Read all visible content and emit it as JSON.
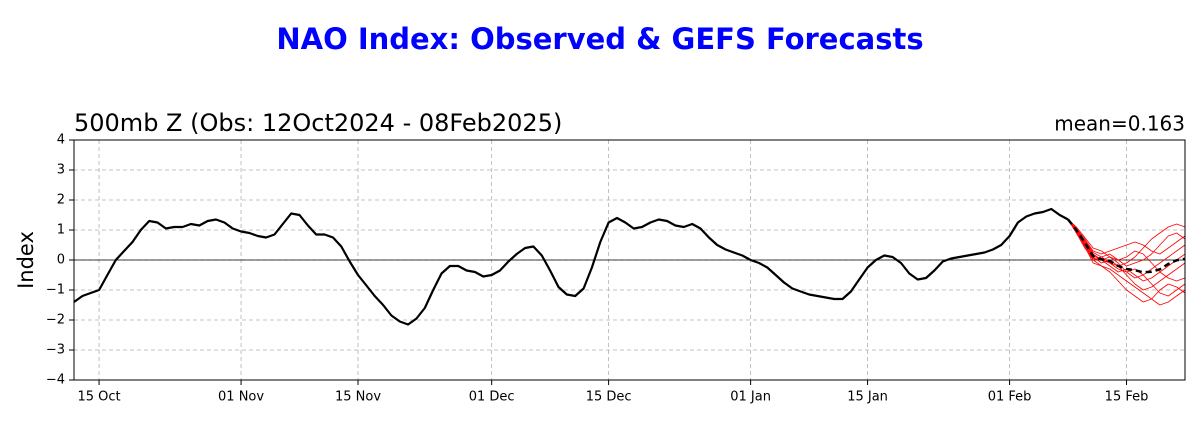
{
  "chart_data": {
    "type": "line",
    "title": "NAO Index: Observed & GEFS Forecasts",
    "subtitle": "500mb Z (Obs: 12Oct2024 - 08Feb2025)",
    "annotation": "mean=0.163",
    "y_label": "Index",
    "xlim": [
      "2024-10-12",
      "2025-02-22"
    ],
    "xticks": [
      {
        "value": "2024-10-15",
        "label": "15 Oct"
      },
      {
        "value": "2024-11-01",
        "label": "01 Nov"
      },
      {
        "value": "2024-11-15",
        "label": "15 Nov"
      },
      {
        "value": "2024-12-01",
        "label": "01 Dec"
      },
      {
        "value": "2024-12-15",
        "label": "15 Dec"
      },
      {
        "value": "2025-01-01",
        "label": "01 Jan"
      },
      {
        "value": "2025-01-15",
        "label": "15 Jan"
      },
      {
        "value": "2025-02-01",
        "label": "01 Feb"
      },
      {
        "value": "2025-02-15",
        "label": "15 Feb"
      }
    ],
    "ylim": [
      -4,
      4
    ],
    "yticks": [
      {
        "value": -4,
        "label": "−4"
      },
      {
        "value": -3,
        "label": "−3"
      },
      {
        "value": -2,
        "label": "−2"
      },
      {
        "value": -1,
        "label": "−1"
      },
      0,
      1,
      2,
      3,
      4
    ],
    "grid": true,
    "series": [
      {
        "color": "#ff0000",
        "linestyle": "solid",
        "x": [
          "2025-02-08",
          "2025-02-09",
          "2025-02-10",
          "2025-02-11",
          "2025-02-12",
          "2025-02-13",
          "2025-02-14",
          "2025-02-15",
          "2025-02-16",
          "2025-02-17",
          "2025-02-18",
          "2025-02-19",
          "2025-02-20",
          "2025-02-21",
          "2025-02-22"
        ],
        "values": [
          1.35,
          1.0,
          0.6,
          0.2,
          0.0,
          -0.1,
          -0.2,
          -0.1,
          0.1,
          0.4,
          0.7,
          0.9,
          1.1,
          1.2,
          1.1
        ]
      },
      {
        "color": "#ff0000",
        "linestyle": "solid",
        "x": [
          "2025-02-08",
          "2025-02-09",
          "2025-02-10",
          "2025-02-11",
          "2025-02-12",
          "2025-02-13",
          "2025-02-14",
          "2025-02-15",
          "2025-02-16",
          "2025-02-17",
          "2025-02-18",
          "2025-02-19",
          "2025-02-20",
          "2025-02-21",
          "2025-02-22"
        ],
        "values": [
          1.35,
          0.95,
          0.5,
          0.0,
          -0.2,
          -0.3,
          -0.5,
          -0.7,
          -0.9,
          -1.1,
          -1.3,
          -1.5,
          -1.4,
          -1.2,
          -1.0
        ]
      },
      {
        "color": "#ff0000",
        "linestyle": "solid",
        "x": [
          "2025-02-08",
          "2025-02-09",
          "2025-02-10",
          "2025-02-11",
          "2025-02-12",
          "2025-02-13",
          "2025-02-14",
          "2025-02-15",
          "2025-02-16",
          "2025-02-17",
          "2025-02-18",
          "2025-02-19",
          "2025-02-20",
          "2025-02-21",
          "2025-02-22"
        ],
        "values": [
          1.35,
          1.05,
          0.7,
          0.3,
          0.2,
          0.3,
          0.4,
          0.5,
          0.6,
          0.5,
          0.3,
          0.2,
          0.4,
          0.6,
          0.8
        ]
      },
      {
        "color": "#ff0000",
        "linestyle": "solid",
        "x": [
          "2025-02-08",
          "2025-02-09",
          "2025-02-10",
          "2025-02-11",
          "2025-02-12",
          "2025-02-13",
          "2025-02-14",
          "2025-02-15",
          "2025-02-16",
          "2025-02-17",
          "2025-02-18",
          "2025-02-19",
          "2025-02-20",
          "2025-02-21",
          "2025-02-22"
        ],
        "values": [
          1.35,
          0.9,
          0.4,
          0.0,
          0.1,
          -0.1,
          -0.3,
          -0.4,
          -0.6,
          -0.5,
          -0.3,
          -0.1,
          0.1,
          0.3,
          0.5
        ]
      },
      {
        "color": "#ff0000",
        "linestyle": "solid",
        "x": [
          "2025-02-08",
          "2025-02-09",
          "2025-02-10",
          "2025-02-11",
          "2025-02-12",
          "2025-02-13",
          "2025-02-14",
          "2025-02-15",
          "2025-02-16",
          "2025-02-17",
          "2025-02-18",
          "2025-02-19",
          "2025-02-20",
          "2025-02-21",
          "2025-02-22"
        ],
        "values": [
          1.35,
          1.0,
          0.55,
          0.1,
          -0.1,
          0.0,
          -0.2,
          -0.5,
          -0.8,
          -1.0,
          -0.9,
          -0.7,
          -0.5,
          -0.3,
          -0.1
        ]
      },
      {
        "color": "#ff0000",
        "linestyle": "solid",
        "x": [
          "2025-02-08",
          "2025-02-09",
          "2025-02-10",
          "2025-02-11",
          "2025-02-12",
          "2025-02-13",
          "2025-02-14",
          "2025-02-15",
          "2025-02-16",
          "2025-02-17",
          "2025-02-18",
          "2025-02-19",
          "2025-02-20",
          "2025-02-21",
          "2025-02-22"
        ],
        "values": [
          1.35,
          1.1,
          0.75,
          0.4,
          0.3,
          0.1,
          0.0,
          0.1,
          0.3,
          0.2,
          -0.1,
          -0.4,
          -0.6,
          -0.7,
          -0.6
        ]
      },
      {
        "color": "#ff0000",
        "linestyle": "solid",
        "x": [
          "2025-02-08",
          "2025-02-09",
          "2025-02-10",
          "2025-02-11",
          "2025-02-12",
          "2025-02-13",
          "2025-02-14",
          "2025-02-15",
          "2025-02-16",
          "2025-02-17",
          "2025-02-18",
          "2025-02-19",
          "2025-02-20",
          "2025-02-21",
          "2025-02-22"
        ],
        "values": [
          1.35,
          0.95,
          0.45,
          -0.1,
          -0.2,
          -0.4,
          -0.7,
          -1.0,
          -1.2,
          -1.4,
          -1.3,
          -1.0,
          -0.8,
          -0.9,
          -1.1
        ]
      },
      {
        "color": "#ff0000",
        "linestyle": "solid",
        "x": [
          "2025-02-08",
          "2025-02-09",
          "2025-02-10",
          "2025-02-11",
          "2025-02-12",
          "2025-02-13",
          "2025-02-14",
          "2025-02-15",
          "2025-02-16",
          "2025-02-17",
          "2025-02-18",
          "2025-02-19",
          "2025-02-20",
          "2025-02-21",
          "2025-02-22"
        ],
        "values": [
          1.35,
          1.0,
          0.65,
          0.25,
          0.1,
          0.2,
          0.0,
          -0.2,
          -0.1,
          0.0,
          0.2,
          0.5,
          0.8,
          0.9,
          0.7
        ]
      },
      {
        "color": "#ff0000",
        "linestyle": "solid",
        "x": [
          "2025-02-08",
          "2025-02-09",
          "2025-02-10",
          "2025-02-11",
          "2025-02-12",
          "2025-02-13",
          "2025-02-14",
          "2025-02-15",
          "2025-02-16",
          "2025-02-17",
          "2025-02-18",
          "2025-02-19",
          "2025-02-20",
          "2025-02-21",
          "2025-02-22"
        ],
        "values": [
          1.35,
          1.05,
          0.6,
          0.15,
          0.0,
          -0.2,
          -0.4,
          -0.3,
          -0.5,
          -0.7,
          -0.6,
          -0.4,
          -0.2,
          0.0,
          0.2
        ]
      },
      {
        "color": "#ff0000",
        "linestyle": "solid",
        "x": [
          "2025-02-08",
          "2025-02-09",
          "2025-02-10",
          "2025-02-11",
          "2025-02-12",
          "2025-02-13",
          "2025-02-14",
          "2025-02-15",
          "2025-02-16",
          "2025-02-17",
          "2025-02-18",
          "2025-02-19",
          "2025-02-20",
          "2025-02-21",
          "2025-02-22"
        ],
        "values": [
          1.35,
          0.9,
          0.5,
          0.05,
          0.0,
          0.1,
          -0.1,
          -0.4,
          -0.3,
          -0.5,
          -0.8,
          -1.1,
          -1.2,
          -1.0,
          -0.8
        ]
      },
      {
        "color": "#000000",
        "linestyle": "solid",
        "x": [
          "2024-10-12",
          "2024-10-13",
          "2024-10-14",
          "2024-10-15",
          "2024-10-16",
          "2024-10-17",
          "2024-10-18",
          "2024-10-19",
          "2024-10-20",
          "2024-10-21",
          "2024-10-22",
          "2024-10-23",
          "2024-10-24",
          "2024-10-25",
          "2024-10-26",
          "2024-10-27",
          "2024-10-28",
          "2024-10-29",
          "2024-10-30",
          "2024-10-31",
          "2024-11-01",
          "2024-11-02",
          "2024-11-03",
          "2024-11-04",
          "2024-11-05",
          "2024-11-06",
          "2024-11-07",
          "2024-11-08",
          "2024-11-09",
          "2024-11-10",
          "2024-11-11",
          "2024-11-12",
          "2024-11-13",
          "2024-11-14",
          "2024-11-15",
          "2024-11-16",
          "2024-11-17",
          "2024-11-18",
          "2024-11-19",
          "2024-11-20",
          "2024-11-21",
          "2024-11-22",
          "2024-11-23",
          "2024-11-24",
          "2024-11-25",
          "2024-11-26",
          "2024-11-27",
          "2024-11-28",
          "2024-11-29",
          "2024-11-30",
          "2024-12-01",
          "2024-12-02",
          "2024-12-03",
          "2024-12-04",
          "2024-12-05",
          "2024-12-06",
          "2024-12-07",
          "2024-12-08",
          "2024-12-09",
          "2024-12-10",
          "2024-12-11",
          "2024-12-12",
          "2024-12-13",
          "2024-12-14",
          "2024-12-15",
          "2024-12-16",
          "2024-12-17",
          "2024-12-18",
          "2024-12-19",
          "2024-12-20",
          "2024-12-21",
          "2024-12-22",
          "2024-12-23",
          "2024-12-24",
          "2024-12-25",
          "2024-12-26",
          "2024-12-27",
          "2024-12-28",
          "2024-12-29",
          "2024-12-30",
          "2024-12-31",
          "2025-01-01",
          "2025-01-02",
          "2025-01-03",
          "2025-01-04",
          "2025-01-05",
          "2025-01-06",
          "2025-01-07",
          "2025-01-08",
          "2025-01-09",
          "2025-01-10",
          "2025-01-11",
          "2025-01-12",
          "2025-01-13",
          "2025-01-14",
          "2025-01-15",
          "2025-01-16",
          "2025-01-17",
          "2025-01-18",
          "2025-01-19",
          "2025-01-20",
          "2025-01-21",
          "2025-01-22",
          "2025-01-23",
          "2025-01-24",
          "2025-01-25",
          "2025-01-26",
          "2025-01-27",
          "2025-01-28",
          "2025-01-29",
          "2025-01-30",
          "2025-01-31",
          "2025-02-01",
          "2025-02-02",
          "2025-02-03",
          "2025-02-04",
          "2025-02-05",
          "2025-02-06",
          "2025-02-07",
          "2025-02-08"
        ],
        "values": [
          -1.4,
          -1.2,
          -1.1,
          -1.0,
          -0.5,
          0.0,
          0.3,
          0.6,
          1.0,
          1.3,
          1.25,
          1.05,
          1.1,
          1.1,
          1.2,
          1.15,
          1.3,
          1.35,
          1.25,
          1.05,
          0.95,
          0.9,
          0.8,
          0.75,
          0.85,
          1.2,
          1.55,
          1.5,
          1.15,
          0.85,
          0.85,
          0.75,
          0.45,
          -0.05,
          -0.5,
          -0.85,
          -1.2,
          -1.5,
          -1.85,
          -2.05,
          -2.15,
          -1.95,
          -1.6,
          -1.0,
          -0.45,
          -0.2,
          -0.2,
          -0.35,
          -0.4,
          -0.55,
          -0.5,
          -0.35,
          -0.05,
          0.2,
          0.4,
          0.45,
          0.15,
          -0.35,
          -0.9,
          -1.15,
          -1.2,
          -0.95,
          -0.25,
          0.6,
          1.25,
          1.4,
          1.25,
          1.05,
          1.1,
          1.25,
          1.35,
          1.3,
          1.15,
          1.1,
          1.2,
          1.05,
          0.75,
          0.5,
          0.35,
          0.25,
          0.15,
          0.0,
          -0.1,
          -0.25,
          -0.5,
          -0.75,
          -0.95,
          -1.05,
          -1.15,
          -1.2,
          -1.25,
          -1.3,
          -1.3,
          -1.05,
          -0.65,
          -0.25,
          0.0,
          0.15,
          0.1,
          -0.1,
          -0.45,
          -0.65,
          -0.6,
          -0.35,
          -0.05,
          0.05,
          0.1,
          0.15,
          0.2,
          0.25,
          0.35,
          0.5,
          0.8,
          1.25,
          1.45,
          1.55,
          1.6,
          1.7,
          1.5,
          1.35
        ]
      },
      {
        "color": "#000000",
        "linestyle": "dashed",
        "x": [
          "2025-02-08",
          "2025-02-09",
          "2025-02-10",
          "2025-02-11",
          "2025-02-12",
          "2025-02-13",
          "2025-02-14",
          "2025-02-15",
          "2025-02-16",
          "2025-02-17",
          "2025-02-18",
          "2025-02-19",
          "2025-02-20",
          "2025-02-21",
          "2025-02-22"
        ],
        "values": [
          1.35,
          1.0,
          0.58,
          0.13,
          0.02,
          -0.03,
          -0.2,
          -0.3,
          -0.34,
          -0.41,
          -0.39,
          -0.31,
          -0.13,
          -0.01,
          0.04
        ]
      }
    ]
  }
}
